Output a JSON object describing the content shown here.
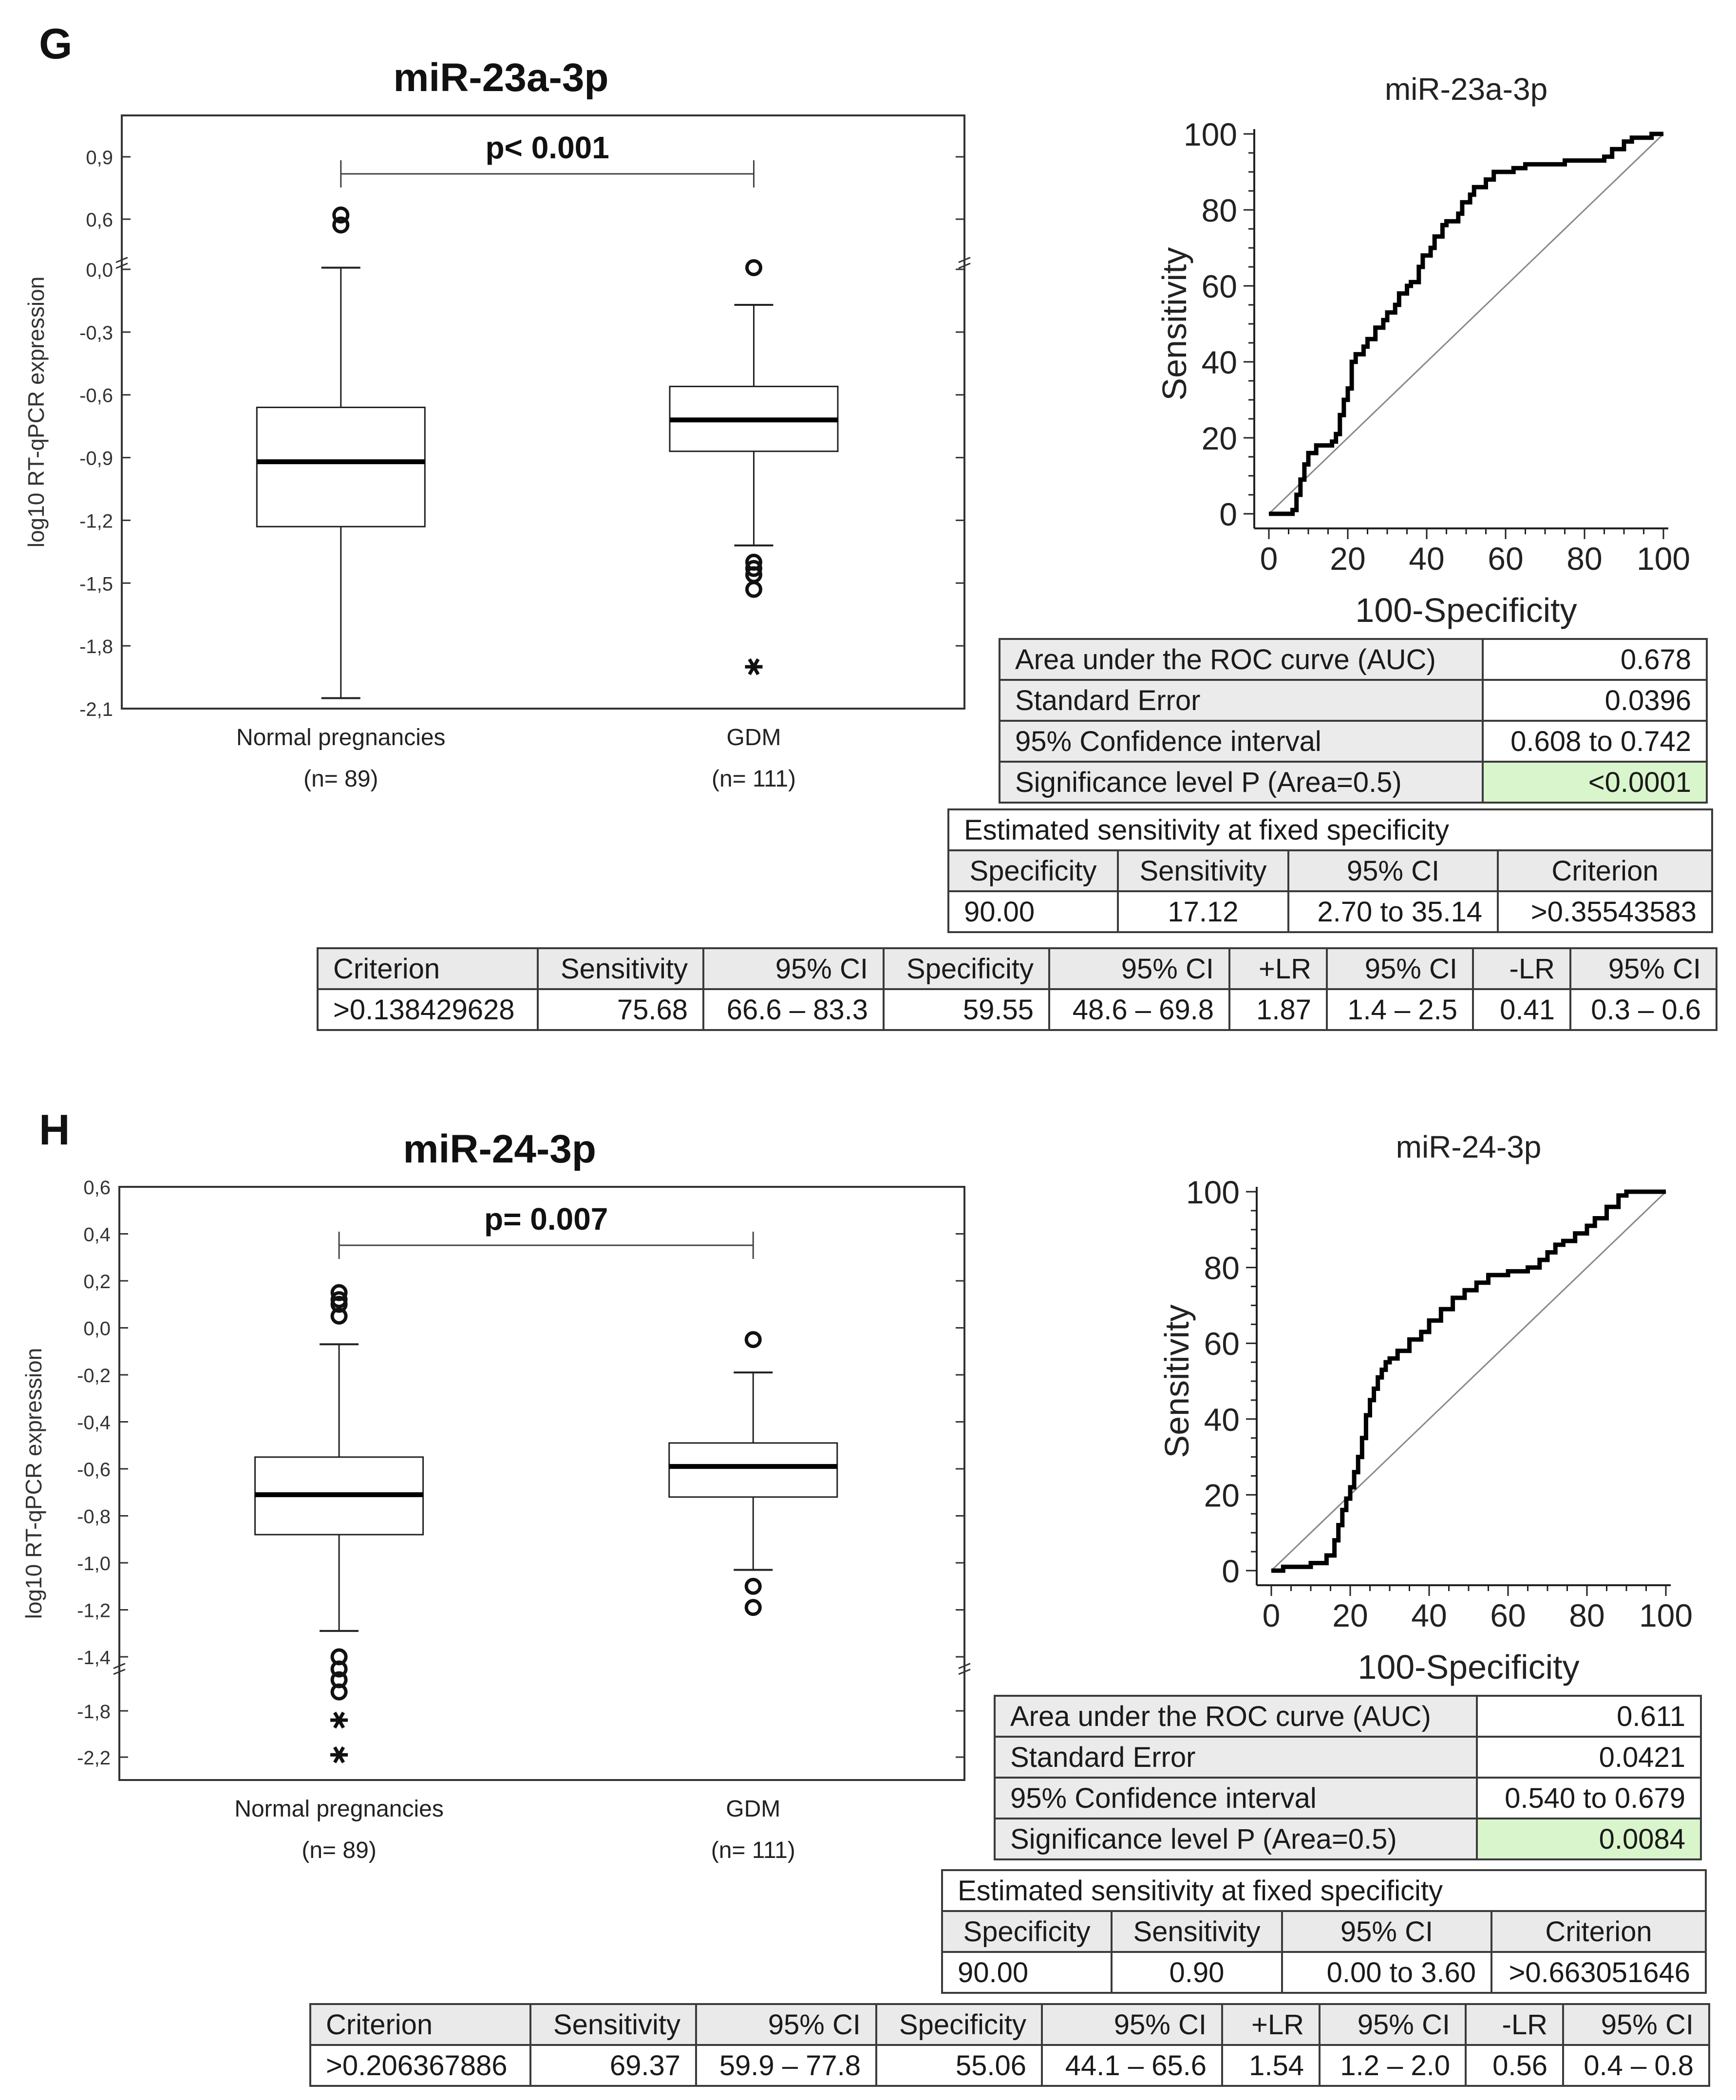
{
  "panels": [
    {
      "letter": "G",
      "boxplot": {
        "title": "miR-23a-3p",
        "ylabel": "log10 RT-qPCR expression",
        "ticks": [
          "0,9",
          "0,6",
          "0,0",
          "-0,3",
          "-0,6",
          "-0,9",
          "-1,2",
          "-1,5",
          "-1,8",
          "-2,1"
        ],
        "pvalue": "p< 0.001",
        "groups": [
          {
            "name": "Normal pregnancies",
            "n": "(n= 89)"
          },
          {
            "name": "GDM",
            "n": "(n= 111)"
          }
        ]
      },
      "roc": {
        "title": "miR-23a-3p",
        "xlabel": "100-Specificity",
        "ylabel": "Sensitivity",
        "xticks": [
          "0",
          "20",
          "40",
          "60",
          "80",
          "100"
        ],
        "yticks": [
          "0",
          "20",
          "40",
          "60",
          "80",
          "100"
        ]
      },
      "auc_table": [
        {
          "label": "Area under the ROC curve (AUC)",
          "value": "0.678"
        },
        {
          "label": "Standard Error",
          "value": "0.0396"
        },
        {
          "label": "95% Confidence interval",
          "value": "0.608 to 0.742"
        },
        {
          "label": "Significance level P (Area=0.5)",
          "value": "<0.0001"
        }
      ],
      "fixed_spec": {
        "title": "Estimated sensitivity at fixed specificity",
        "headers": [
          "Specificity",
          "Sensitivity",
          "95% CI",
          "Criterion"
        ],
        "row": [
          "90.00",
          "17.12",
          "2.70 to 35.14",
          ">0.35543583"
        ]
      },
      "criterion_table": {
        "headers": [
          "Criterion",
          "Sensitivity",
          "95% CI",
          "Specificity",
          "95% CI",
          "+LR",
          "95% CI",
          "-LR",
          "95% CI"
        ],
        "row": [
          ">0.138429628",
          "75.68",
          "66.6 – 83.3",
          "59.55",
          "48.6 – 69.8",
          "1.87",
          "1.4 – 2.5",
          "0.41",
          "0.3 – 0.6"
        ]
      }
    },
    {
      "letter": "H",
      "boxplot": {
        "title": "miR-24-3p",
        "ylabel": "log10 RT-qPCR expression",
        "ticks": [
          "0,6",
          "0,4",
          "0,2",
          "0,0",
          "-0,2",
          "-0,4",
          "-0,6",
          "-0,8",
          "-1,0",
          "-1,2",
          "-1,4",
          "-1,8",
          "-2,2"
        ],
        "pvalue": "p= 0.007",
        "groups": [
          {
            "name": "Normal pregnancies",
            "n": "(n= 89)"
          },
          {
            "name": "GDM",
            "n": "(n= 111)"
          }
        ]
      },
      "roc": {
        "title": "miR-24-3p",
        "xlabel": "100-Specificity",
        "ylabel": "Sensitivity",
        "xticks": [
          "0",
          "20",
          "40",
          "60",
          "80",
          "100"
        ],
        "yticks": [
          "0",
          "20",
          "40",
          "60",
          "80",
          "100"
        ]
      },
      "auc_table": [
        {
          "label": "Area under the ROC curve (AUC)",
          "value": "0.611"
        },
        {
          "label": "Standard Error",
          "value": "0.0421"
        },
        {
          "label": "95% Confidence interval",
          "value": "0.540 to 0.679"
        },
        {
          "label": "Significance level P (Area=0.5)",
          "value": "0.0084"
        }
      ],
      "fixed_spec": {
        "title": "Estimated sensitivity at fixed specificity",
        "headers": [
          "Specificity",
          "Sensitivity",
          "95% CI",
          "Criterion"
        ],
        "row": [
          "90.00",
          "0.90",
          "0.00 to 3.60",
          ">0.663051646"
        ]
      },
      "criterion_table": {
        "headers": [
          "Criterion",
          "Sensitivity",
          "95% CI",
          "Specificity",
          "95% CI",
          "+LR",
          "95% CI",
          "-LR",
          "95% CI"
        ],
        "row": [
          ">0.206367886",
          "69.37",
          "59.9 – 77.8",
          "55.06",
          "44.1 – 65.6",
          "1.54",
          "1.2 – 2.0",
          "0.56",
          "0.4 – 0.8"
        ]
      }
    }
  ],
  "chart_data": [
    {
      "type": "box",
      "title": "miR-23a-3p",
      "ylabel": "log10 RT-qPCR expression",
      "categories": [
        "Normal pregnancies",
        "GDM"
      ],
      "boxes": [
        {
          "whisker_low": -2.05,
          "q1": -1.23,
          "median": -0.92,
          "q3": -0.66,
          "whisker_high": 0.02,
          "outliers": [
            0.62,
            0.53
          ],
          "extremes": []
        },
        {
          "whisker_low": -1.32,
          "q1": -0.87,
          "median": -0.72,
          "q3": -0.56,
          "whisker_high": -0.17,
          "outliers": [
            0.02,
            -1.4,
            -1.43,
            -1.46,
            -1.53
          ],
          "extremes": [
            -1.9
          ]
        }
      ]
    },
    {
      "type": "line",
      "title": "miR-23a-3p",
      "xlabel": "100-Specificity",
      "ylabel": "Sensitivity",
      "xlim": [
        0,
        100
      ],
      "ylim": [
        0,
        100
      ],
      "x": [
        0,
        3,
        6,
        7,
        8,
        9,
        10,
        12,
        15,
        16,
        17,
        18,
        19,
        20,
        21,
        22,
        24,
        25,
        27,
        29,
        30,
        32,
        33,
        35,
        36,
        38,
        39,
        41,
        42,
        44,
        45,
        48,
        49,
        51,
        52,
        55,
        57,
        62,
        65,
        67,
        70,
        75,
        82,
        85,
        87,
        90,
        92,
        95,
        97,
        100
      ],
      "y": [
        0,
        0,
        1,
        5,
        9,
        13,
        16,
        18,
        18,
        19,
        21,
        26,
        30,
        33,
        40,
        42,
        44,
        46,
        49,
        51,
        53,
        55,
        58,
        60,
        61,
        65,
        68,
        70,
        73,
        76,
        77,
        79,
        82,
        84,
        86,
        88,
        90,
        91,
        92,
        92,
        92,
        93,
        93,
        94,
        96,
        98,
        99,
        99,
        100,
        100
      ],
      "reference": {
        "x": [
          0,
          100
        ],
        "y": [
          0,
          100
        ]
      }
    },
    {
      "type": "box",
      "title": "miR-24-3p",
      "ylabel": "log10 RT-qPCR expression",
      "categories": [
        "Normal pregnancies",
        "GDM"
      ],
      "boxes": [
        {
          "whisker_low": -1.29,
          "q1": -0.88,
          "median": -0.71,
          "q3": -0.55,
          "whisker_high": -0.07,
          "outliers": [
            0.15,
            0.12,
            0.1,
            0.05,
            -1.4,
            -1.49,
            -1.57,
            -1.66
          ],
          "extremes": [
            -1.88,
            -2.18
          ]
        },
        {
          "whisker_low": -1.03,
          "q1": -0.72,
          "median": -0.59,
          "q3": -0.49,
          "whisker_high": -0.19,
          "outliers": [
            -0.05,
            -1.1,
            -1.19
          ],
          "extremes": []
        }
      ]
    },
    {
      "type": "line",
      "title": "miR-24-3p",
      "xlabel": "100-Specificity",
      "ylabel": "Sensitivity",
      "xlim": [
        0,
        100
      ],
      "ylim": [
        0,
        100
      ],
      "x": [
        0,
        3,
        6,
        10,
        14,
        16,
        17,
        18,
        19,
        20,
        21,
        22,
        23,
        24,
        25,
        26,
        27,
        28,
        29,
        30,
        32,
        35,
        38,
        40,
        43,
        46,
        49,
        52,
        55,
        60,
        65,
        68,
        70,
        72,
        74,
        77,
        80,
        82,
        85,
        88,
        90,
        92,
        96,
        100
      ],
      "y": [
        0,
        1,
        1,
        2,
        4,
        8,
        12,
        16,
        19,
        22,
        26,
        30,
        35,
        41,
        45,
        48,
        51,
        53,
        55,
        56,
        58,
        61,
        63,
        66,
        69,
        72,
        74,
        76,
        78,
        79,
        80,
        82,
        84,
        86,
        87,
        89,
        91,
        93,
        96,
        99,
        100,
        100,
        100,
        100
      ],
      "reference": {
        "x": [
          0,
          100
        ],
        "y": [
          0,
          100
        ]
      }
    }
  ]
}
